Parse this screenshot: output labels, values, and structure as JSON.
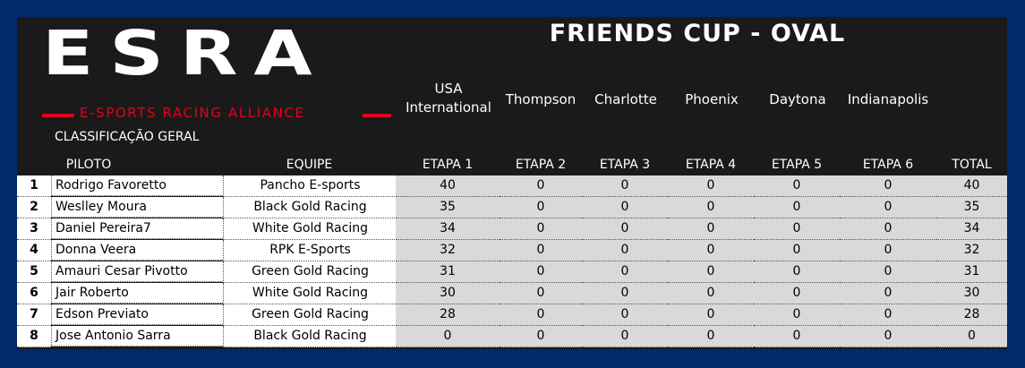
{
  "logo": {
    "text": "ESRA",
    "subtitle": "E-SPORTS RACING ALLIANCE"
  },
  "title": "FRIENDS CUP - OVAL",
  "classification_label": "CLASSIFICAÇÃO GERAL",
  "tracks": [
    [
      "USA",
      "International"
    ],
    [
      "Thompson"
    ],
    [
      "Charlotte"
    ],
    [
      "Phoenix"
    ],
    [
      "Daytona"
    ],
    [
      "Indianapolis"
    ]
  ],
  "headers": {
    "driver": "PILOTO",
    "team": "EQUIPE",
    "stages": [
      "ETAPA 1",
      "ETAPA 2",
      "ETAPA 3",
      "ETAPA 4",
      "ETAPA 5",
      "ETAPA 6"
    ],
    "total": "TOTAL"
  },
  "rows": [
    {
      "pos": "1",
      "driver": "Rodrigo Favoretto",
      "team": "Pancho E-sports",
      "stages": [
        "40",
        "0",
        "0",
        "0",
        "0",
        "0"
      ],
      "total": "40"
    },
    {
      "pos": "2",
      "driver": "Weslley Moura",
      "team": "Black Gold Racing",
      "stages": [
        "35",
        "0",
        "0",
        "0",
        "0",
        "0"
      ],
      "total": "35"
    },
    {
      "pos": "3",
      "driver": "Daniel Pereira7",
      "team": "White Gold Racing",
      "stages": [
        "34",
        "0",
        "0",
        "0",
        "0",
        "0"
      ],
      "total": "34"
    },
    {
      "pos": "4",
      "driver": "Donna Veera",
      "team": "RPK E-Sports",
      "stages": [
        "32",
        "0",
        "0",
        "0",
        "0",
        "0"
      ],
      "total": "32"
    },
    {
      "pos": "5",
      "driver": "Amauri Cesar Pivotto",
      "team": "Green Gold Racing",
      "stages": [
        "31",
        "0",
        "0",
        "0",
        "0",
        "0"
      ],
      "total": "31"
    },
    {
      "pos": "6",
      "driver": "Jair Roberto",
      "team": "White Gold Racing",
      "stages": [
        "30",
        "0",
        "0",
        "0",
        "0",
        "0"
      ],
      "total": "30"
    },
    {
      "pos": "7",
      "driver": "Edson Previato",
      "team": "Green Gold Racing",
      "stages": [
        "28",
        "0",
        "0",
        "0",
        "0",
        "0"
      ],
      "total": "28"
    },
    {
      "pos": "8",
      "driver": "Jose Antonio Sarra",
      "team": "Black Gold Racing",
      "stages": [
        "0",
        "0",
        "0",
        "0",
        "0",
        "0"
      ],
      "total": "0"
    }
  ],
  "colors": {
    "background": "#002a6c",
    "panel": "#1a1a1a",
    "accent": "#e3001b"
  }
}
